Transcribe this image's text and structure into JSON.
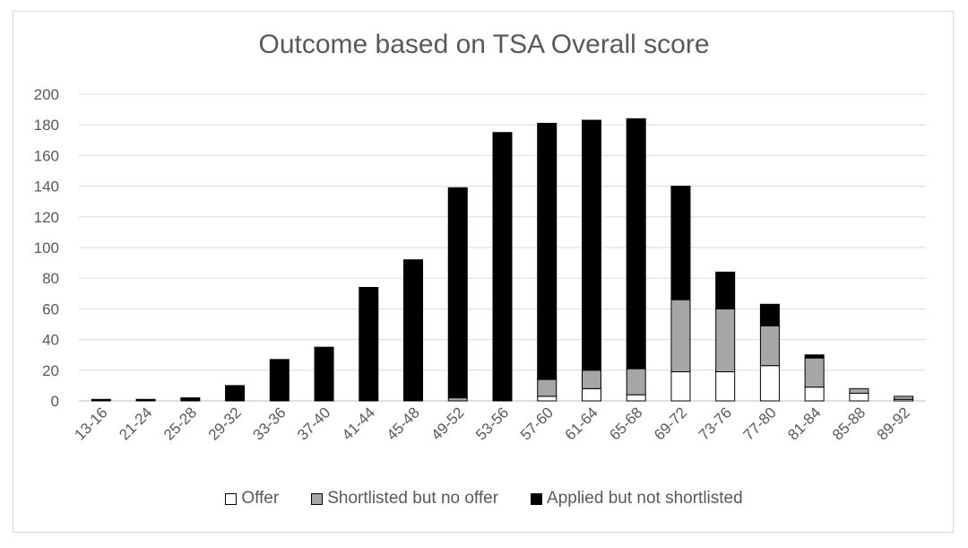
{
  "chart_data": {
    "type": "bar",
    "stacked": true,
    "title": "Outcome based on TSA Overall score",
    "xlabel": "",
    "ylabel": "",
    "ylim": [
      0,
      200
    ],
    "yticks": [
      0,
      20,
      40,
      60,
      80,
      100,
      120,
      140,
      160,
      180,
      200
    ],
    "grid": true,
    "legend_position": "bottom",
    "categories": [
      "13-16",
      "21-24",
      "25-28",
      "29-32",
      "33-36",
      "37-40",
      "41-44",
      "45-48",
      "49-52",
      "53-56",
      "57-60",
      "61-64",
      "65-68",
      "69-72",
      "73-76",
      "77-80",
      "81-84",
      "85-88",
      "89-92"
    ],
    "series": [
      {
        "name": "Offer",
        "color": "#ffffff",
        "values": [
          0,
          0,
          0,
          0,
          0,
          0,
          0,
          0,
          0,
          0,
          3,
          8,
          4,
          19,
          19,
          23,
          9,
          5,
          1
        ]
      },
      {
        "name": "Shortlisted but no offer",
        "color": "#a6a6a6",
        "values": [
          0,
          0,
          0,
          0,
          0,
          0,
          0,
          0,
          2,
          0,
          11,
          12,
          17,
          47,
          41,
          26,
          19,
          3,
          2
        ]
      },
      {
        "name": "Applied but not shortlisted",
        "color": "#000000",
        "values": [
          1,
          1,
          2,
          10,
          27,
          35,
          74,
          92,
          137,
          175,
          167,
          163,
          163,
          74,
          24,
          14,
          2,
          0,
          0
        ]
      }
    ]
  }
}
